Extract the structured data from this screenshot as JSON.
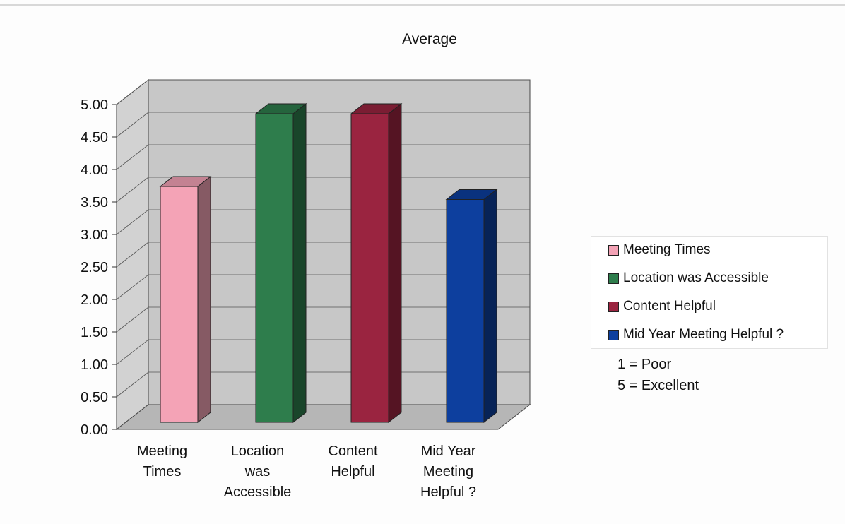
{
  "chart_data": {
    "type": "bar",
    "title": "Average",
    "categories": [
      "Meeting Times",
      "Location was Accessible",
      "Content Helpful",
      "Mid Year Meeting Helpful ?"
    ],
    "category_label_lines": [
      [
        "Meeting",
        "Times"
      ],
      [
        "Location",
        "was",
        "Accessible"
      ],
      [
        "Content",
        "Helpful"
      ],
      [
        "Mid Year",
        "Meeting",
        "Helpful ?"
      ]
    ],
    "values": [
      3.63,
      4.75,
      4.75,
      3.43
    ],
    "ylim": [
      0,
      5
    ],
    "yticks": [
      "0.00",
      "0.50",
      "1.00",
      "1.50",
      "2.00",
      "2.50",
      "3.00",
      "3.50",
      "4.00",
      "4.50",
      "5.00"
    ],
    "colors": [
      "#f4a3b6",
      "#2e7d4c",
      "#9a2440",
      "#0d3f9e"
    ],
    "grid": true,
    "legend": {
      "position": "right",
      "entries": [
        "Meeting Times",
        "Location was Accessible",
        "Content Helpful",
        "Mid Year Meeting Helpful ?"
      ]
    },
    "annotations": [
      "1 = Poor",
      "5 = Excellent"
    ]
  }
}
